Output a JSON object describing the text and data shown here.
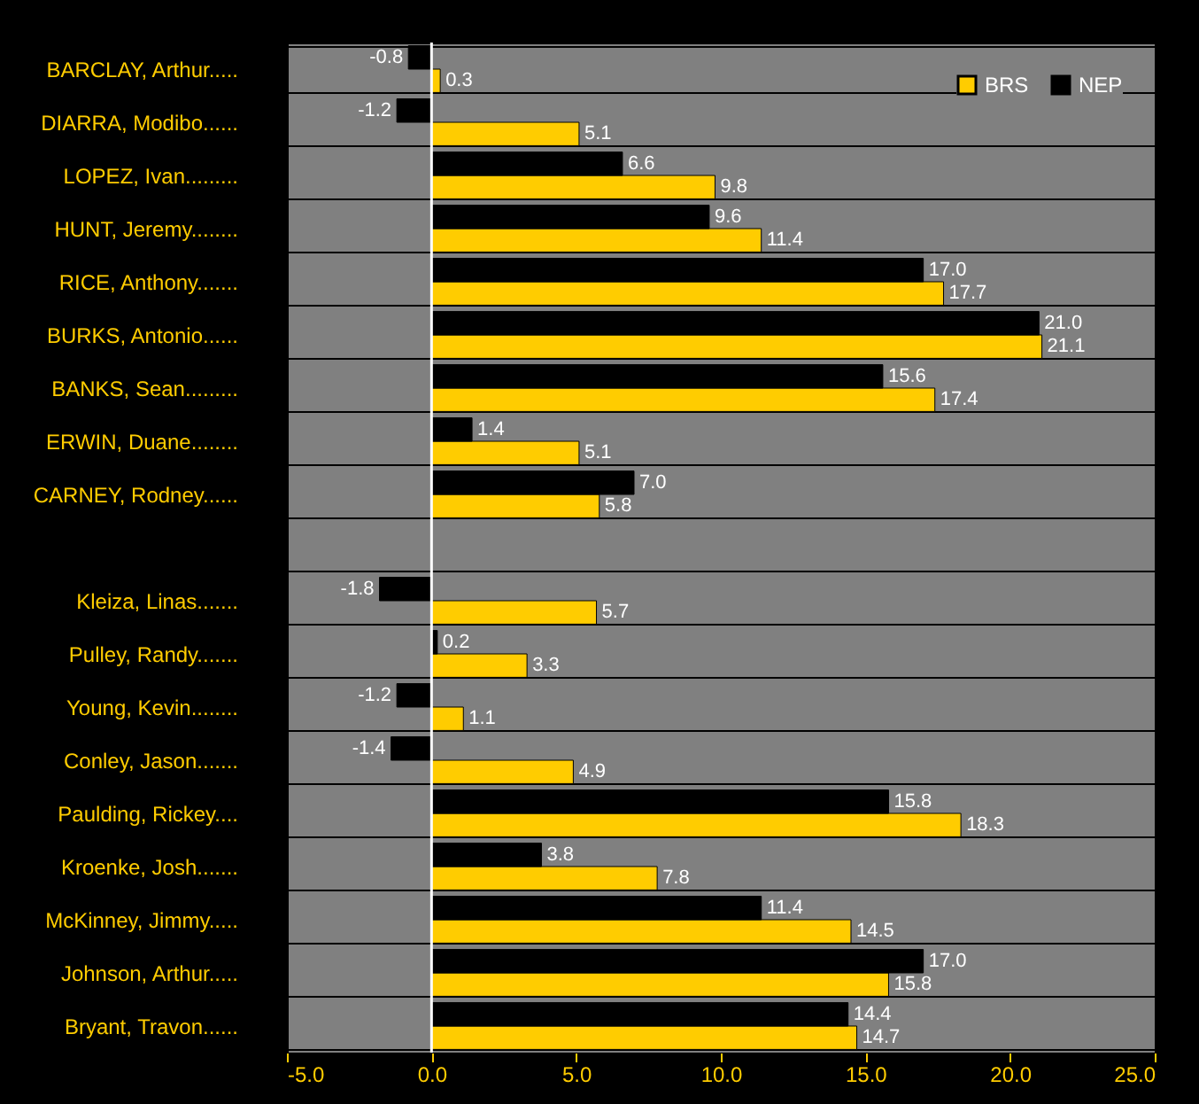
{
  "chart_data": {
    "type": "bar",
    "orientation": "horizontal",
    "categories": [
      "BARCLAY, Arthur.....",
      "DIARRA, Modibo......",
      "LOPEZ, Ivan.........",
      "HUNT, Jeremy........",
      "RICE, Anthony.......",
      "BURKS, Antonio......",
      "BANKS, Sean.........",
      "ERWIN, Duane........",
      "CARNEY, Rodney......",
      null,
      "Kleiza, Linas.......",
      "Pulley, Randy.......",
      "Young, Kevin........",
      "Conley, Jason.......",
      "Paulding, Rickey....",
      "Kroenke, Josh.......",
      "McKinney, Jimmy.....",
      "Johnson, Arthur.....",
      "Bryant, Travon......"
    ],
    "series": [
      {
        "name": "BRS",
        "color": "#ffcc00",
        "values": [
          0.3,
          5.1,
          9.8,
          11.4,
          17.7,
          21.1,
          17.4,
          5.1,
          5.8,
          null,
          5.7,
          3.3,
          1.1,
          4.9,
          18.3,
          7.8,
          14.5,
          15.8,
          14.7
        ],
        "value_labels": [
          "0.3",
          "5.1",
          "9.8",
          "11.4",
          "17.7",
          "21.1",
          "17.4",
          "5.1",
          "5.8",
          null,
          "5.7",
          "3.3",
          "1.1",
          "4.9",
          "18.3",
          "7.8",
          "14.5",
          "15.8",
          "14.7"
        ]
      },
      {
        "name": "NEP",
        "color": "#000000",
        "values": [
          -0.8,
          -1.2,
          6.6,
          9.6,
          17.0,
          21.0,
          15.6,
          1.4,
          7.0,
          null,
          -1.8,
          0.2,
          -1.2,
          -1.4,
          15.8,
          3.8,
          11.4,
          17.0,
          14.4
        ],
        "value_labels": [
          "-0.8",
          "-1.2",
          "6.6",
          "9.6",
          "17.0",
          "21.0",
          "15.6",
          "1.4",
          "7.0",
          null,
          "-1.8",
          "0.2",
          "-1.2",
          "-1.4",
          "15.8",
          "3.8",
          "11.4",
          "17.0",
          "14.4"
        ]
      }
    ],
    "xlim": [
      -5,
      25
    ],
    "xticks": [
      {
        "value": -5,
        "label": "-5.0"
      },
      {
        "value": 0,
        "label": "0.0"
      },
      {
        "value": 5,
        "label": "5.0"
      },
      {
        "value": 10,
        "label": "10.0"
      },
      {
        "value": 15,
        "label": "15.0"
      },
      {
        "value": 20,
        "label": "20.0"
      },
      {
        "value": 25,
        "label": "25.0"
      }
    ],
    "ref_lines": [
      {
        "axis": "x",
        "value": 0,
        "color": "#ffffff"
      }
    ],
    "grid": "y",
    "legend": "top right"
  }
}
